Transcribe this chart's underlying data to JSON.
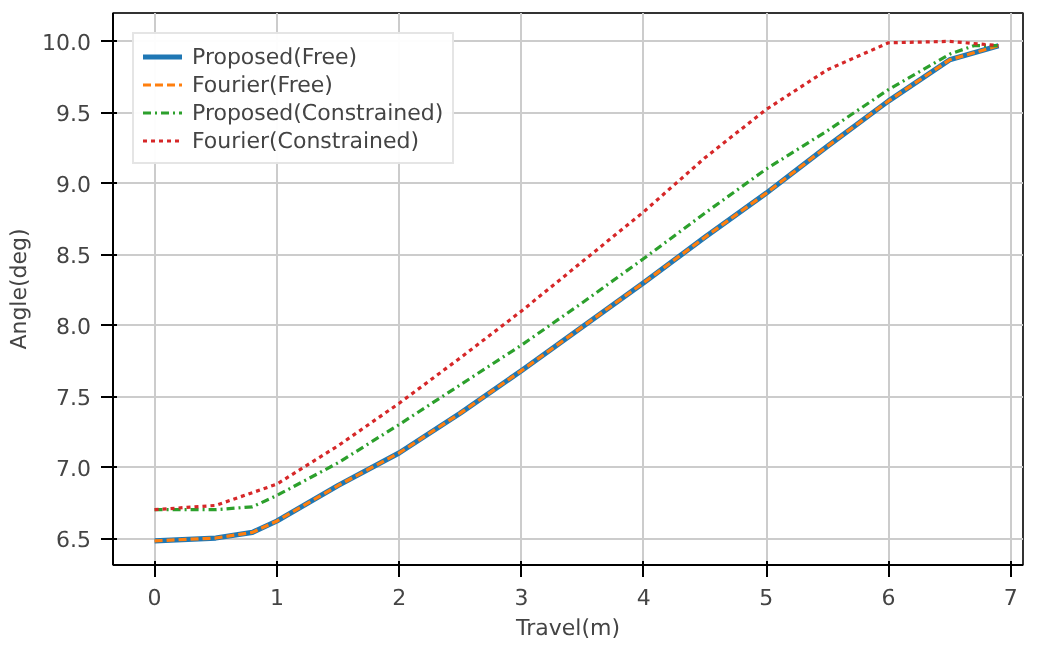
{
  "chart_data": {
    "type": "line",
    "xlabel": "Travel(m)",
    "ylabel": "Angle(deg)",
    "xlim": [
      -0.34,
      7.1
    ],
    "ylim": [
      6.31,
      10.2
    ],
    "xticks": [
      0,
      1,
      2,
      3,
      4,
      5,
      6,
      7
    ],
    "yticks": [
      {
        "value": 6.5,
        "label": "6.5"
      },
      {
        "value": 7.0,
        "label": "7.0"
      },
      {
        "value": 7.5,
        "label": "7.5"
      },
      {
        "value": 8.0,
        "label": "8.0"
      },
      {
        "value": 8.5,
        "label": "8.5"
      },
      {
        "value": 9.0,
        "label": "9.0"
      },
      {
        "value": 9.5,
        "label": "9.5"
      },
      {
        "value": 10.0,
        "label": "10.0"
      }
    ],
    "grid": true,
    "legend": "top left",
    "series": [
      {
        "name": "Proposed(Free)",
        "color": "#1f77b4",
        "line_style": "solid",
        "x": [
          0,
          0.5,
          0.8,
          1,
          1.5,
          2,
          2.5,
          3,
          3.5,
          4,
          4.5,
          5,
          5.5,
          6,
          6.5,
          6.9
        ],
        "values": [
          6.48,
          6.5,
          6.54,
          6.62,
          6.87,
          7.1,
          7.38,
          7.68,
          7.99,
          8.3,
          8.62,
          8.93,
          9.26,
          9.58,
          9.87,
          9.97
        ]
      },
      {
        "name": "Fourier(Free)",
        "color": "#ff7f0e",
        "line_style": "dashed",
        "x": [
          0,
          0.5,
          0.8,
          1,
          1.5,
          2,
          2.5,
          3,
          3.5,
          4,
          4.5,
          5,
          5.5,
          6,
          6.5,
          6.9
        ],
        "values": [
          6.48,
          6.5,
          6.54,
          6.62,
          6.87,
          7.1,
          7.38,
          7.68,
          7.99,
          8.3,
          8.62,
          8.93,
          9.26,
          9.58,
          9.87,
          9.97
        ]
      },
      {
        "name": "Proposed(Constrained)",
        "color": "#2ca02c",
        "line_style": "dashdot",
        "x": [
          0,
          0.5,
          0.8,
          1,
          1.5,
          2,
          2.5,
          3,
          3.5,
          4,
          4.5,
          5,
          5.5,
          6,
          6.5,
          6.7,
          6.9
        ],
        "values": [
          6.7,
          6.7,
          6.72,
          6.8,
          7.03,
          7.3,
          7.58,
          7.86,
          8.16,
          8.47,
          8.79,
          9.1,
          9.37,
          9.66,
          9.91,
          9.97,
          9.97
        ]
      },
      {
        "name": "Fourier(Constrained)",
        "color": "#d62728",
        "line_style": "dotted",
        "x": [
          0,
          0.5,
          1,
          1.5,
          2,
          2.5,
          3,
          3.5,
          4,
          4.5,
          5,
          5.5,
          6,
          6.5,
          6.9
        ],
        "values": [
          6.7,
          6.73,
          6.88,
          7.15,
          7.45,
          7.77,
          8.1,
          8.45,
          8.8,
          9.18,
          9.52,
          9.8,
          9.99,
          10.0,
          9.97
        ]
      }
    ]
  }
}
